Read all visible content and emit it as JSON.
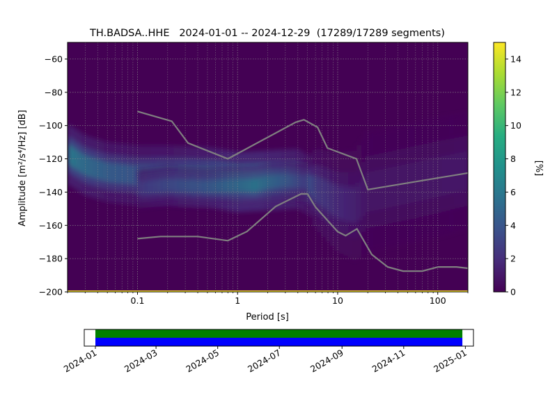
{
  "chart_data": [
    {
      "type": "heatmap",
      "title": "TH.BADSA..HHE   2024-01-01 -- 2024-12-29  (17289/17289 segments)",
      "xlabel": "Period [s]",
      "ylabel": "Amplitude [m²/s⁴/Hz] [dB]",
      "xscale": "log",
      "xlim": [
        0.02,
        200
      ],
      "ylim": [
        -200,
        -50
      ],
      "x_ticks": [
        {
          "value": 0.1,
          "label": "0.1"
        },
        {
          "value": 1,
          "label": "1"
        },
        {
          "value": 10,
          "label": "10"
        },
        {
          "value": 100,
          "label": "100"
        }
      ],
      "y_ticks": [
        {
          "value": -60,
          "label": "−60"
        },
        {
          "value": -80,
          "label": "−80"
        },
        {
          "value": -100,
          "label": "−100"
        },
        {
          "value": -120,
          "label": "−120"
        },
        {
          "value": -140,
          "label": "−140"
        },
        {
          "value": -160,
          "label": "−160"
        },
        {
          "value": -180,
          "label": "−180"
        },
        {
          "value": -200,
          "label": "−200"
        }
      ],
      "grid": true,
      "colormap": "viridis",
      "colors": {
        "background": "#440154",
        "grid": "#8a8a8a",
        "noise_model": "#808080",
        "baseline": "#fde725"
      },
      "colorbar": {
        "label": "[%]",
        "range": [
          0,
          15
        ],
        "ticks": [
          {
            "value": 0,
            "label": "0"
          },
          {
            "value": 2,
            "label": "2"
          },
          {
            "value": 4,
            "label": "4"
          },
          {
            "value": 6,
            "label": "6"
          },
          {
            "value": 8,
            "label": "8"
          },
          {
            "value": 10,
            "label": "10"
          },
          {
            "value": 12,
            "label": "12"
          },
          {
            "value": 14,
            "label": "14"
          }
        ]
      },
      "density_bands": [
        {
          "x": [
            0.02,
            0.03,
            0.05,
            0.1,
            0.2,
            0.5,
            1,
            2,
            4,
            6,
            10,
            15,
            20,
            50,
            100,
            200
          ],
          "y": [
            -117,
            -124,
            -128,
            -130,
            -130,
            -131,
            -134,
            -133,
            -132,
            -138,
            -146,
            -148,
            -140,
            -135,
            -131,
            -127
          ],
          "peak": [
            7,
            6,
            5,
            4.5,
            5,
            6,
            9,
            8,
            6,
            3,
            2,
            1.5,
            1,
            1,
            1,
            1.2
          ]
        },
        {
          "x": [
            0.1,
            0.2,
            0.5,
            1,
            1.5,
            2,
            3,
            5
          ],
          "y": [
            -138,
            -136,
            -137,
            -136,
            -136,
            -134,
            -133,
            -134
          ],
          "peak": [
            3,
            4,
            5,
            6,
            7,
            6,
            5,
            3
          ]
        }
      ],
      "noise_models": [
        {
          "name": "high",
          "x": [
            0.1,
            0.22,
            0.32,
            0.8,
            3.8,
            4.6,
            6.3,
            7.9,
            15.4,
            20,
            200
          ],
          "y": [
            -91.5,
            -97.4,
            -110.5,
            -120,
            -98,
            -96.5,
            -101,
            -113.5,
            -120,
            -138.5,
            -128.5
          ]
        },
        {
          "name": "low",
          "x": [
            0.1,
            0.17,
            0.4,
            0.8,
            1.24,
            2.4,
            4.3,
            5,
            6,
            10,
            12,
            15.6,
            21.9,
            31.6,
            45,
            70,
            101,
            154,
            200
          ],
          "y": [
            -168,
            -166.7,
            -166.7,
            -169.2,
            -163.7,
            -148.6,
            -141.1,
            -141.1,
            -149,
            -163.8,
            -166.2,
            -162.1,
            -177.5,
            -185,
            -187.5,
            -187.5,
            -185,
            -185,
            -185.8
          ]
        }
      ]
    },
    {
      "type": "timeline",
      "x_ticks": [
        "2024-01",
        "2024-03",
        "2024-05",
        "2024-07",
        "2024-09",
        "2024-11",
        "2025-01"
      ],
      "xlim": [
        "2023-12-21",
        "2025-01-09"
      ],
      "bars": [
        {
          "start": "2024-01-01",
          "end": "2024-12-29",
          "color": "#008000"
        },
        {
          "start": "2024-01-01",
          "end": "2024-12-29",
          "color": "#0000ff"
        }
      ]
    }
  ]
}
